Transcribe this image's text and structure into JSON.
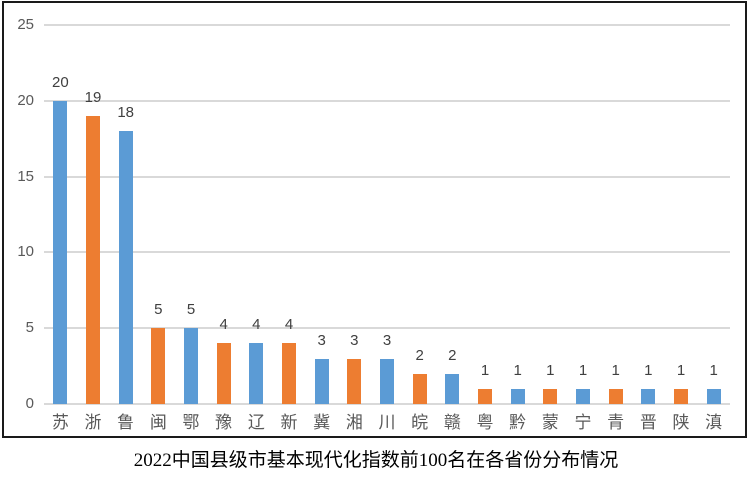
{
  "chart_data": {
    "type": "bar",
    "title": "2022中国县级市基本现代化指数前100名在各省份分布情况",
    "categories": [
      "苏",
      "浙",
      "鲁",
      "闽",
      "鄂",
      "豫",
      "辽",
      "新",
      "冀",
      "湘",
      "川",
      "皖",
      "赣",
      "粤",
      "黔",
      "蒙",
      "宁",
      "青",
      "晋",
      "陕",
      "滇"
    ],
    "values": [
      20,
      19,
      18,
      5,
      5,
      4,
      4,
      4,
      3,
      3,
      3,
      2,
      2,
      1,
      1,
      1,
      1,
      1,
      1,
      1,
      1
    ],
    "xlabel": "",
    "ylabel": "",
    "ylim": [
      0,
      25
    ],
    "yticks": [
      0,
      5,
      10,
      15,
      20,
      25
    ],
    "grid": true,
    "legend_position": "none",
    "data_labels": true,
    "bar_colors_alternate": [
      "#5b9bd5",
      "#ed7d31"
    ]
  },
  "style": {
    "bar_blue": "#5b9bd5",
    "bar_orange": "#ed7d31",
    "gridline_color": "#d9d9d9",
    "axis_text_color": "#595959",
    "data_label_color": "#404040",
    "frame_border_color": "#1a1a1a",
    "background": "#ffffff"
  }
}
